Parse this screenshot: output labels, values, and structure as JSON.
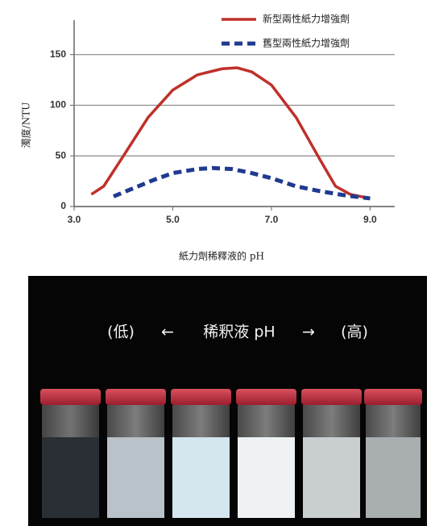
{
  "chart_data": {
    "type": "line",
    "xlabel": "紙力劑稀釋液的 pH",
    "ylabel": "濁度/NTU",
    "xlim": [
      3.0,
      9.5
    ],
    "ylim": [
      0,
      180
    ],
    "xticks": [
      {
        "value": 3,
        "label": "3.0"
      },
      {
        "value": 5,
        "label": "5.0"
      },
      {
        "value": 7,
        "label": "7.0"
      },
      {
        "value": 9,
        "label": "9.0"
      }
    ],
    "yticks": [
      0,
      50,
      100,
      150
    ],
    "grid": true,
    "legend": "top-right",
    "series": [
      {
        "name": "新型兩性紙力增強劑",
        "color": "#c0302a",
        "line_style": "solid",
        "x": [
          3.35,
          3.6,
          4.0,
          4.5,
          5.0,
          5.5,
          6.0,
          6.3,
          6.6,
          7.0,
          7.5,
          8.0,
          8.3,
          8.6,
          9.0
        ],
        "values": [
          12,
          20,
          50,
          88,
          115,
          130,
          136,
          137,
          133,
          120,
          88,
          45,
          20,
          12,
          8
        ]
      },
      {
        "name": "舊型兩性紙力增強劑",
        "color": "#1f3a8f",
        "line_style": "dashed",
        "x": [
          3.8,
          4.2,
          4.6,
          5.0,
          5.5,
          5.8,
          6.2,
          6.6,
          7.0,
          7.5,
          8.0,
          8.5,
          9.0
        ],
        "values": [
          10,
          18,
          26,
          33,
          37,
          38,
          37,
          33,
          28,
          20,
          15,
          11,
          8
        ]
      }
    ]
  },
  "photo": {
    "caption": [
      "(低)",
      "←",
      "稀釈液 pH",
      "→",
      "(高)"
    ]
  }
}
